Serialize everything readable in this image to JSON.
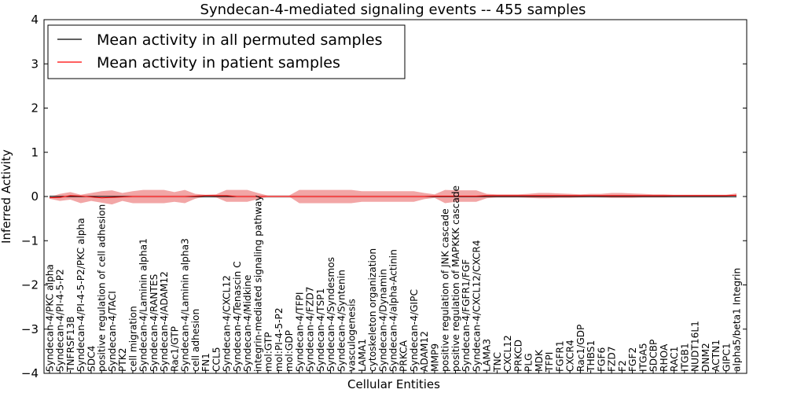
{
  "chart_data": {
    "type": "line",
    "title": "Syndecan-4-mediated signaling events -- 455 samples",
    "xlabel": "Cellular Entities",
    "ylabel": "Inferred Activity",
    "ylim": [
      -4,
      4
    ],
    "yticks": [
      "−4",
      "−3",
      "−2",
      "−1",
      "0",
      "1",
      "2",
      "3",
      "4"
    ],
    "yticks_values": [
      -4,
      -3,
      -2,
      -1,
      0,
      1,
      2,
      3,
      4
    ],
    "legend": {
      "position": "top-left",
      "entries": [
        {
          "label": "Mean activity in all permuted samples",
          "color": "#000000"
        },
        {
          "label": "Mean activity in patient samples",
          "color": "#ff0000"
        }
      ]
    },
    "colors": {
      "permuted": "#000000",
      "patient": "#ff0000",
      "patient_band": "#ee8888",
      "permuted_band": "#bbbbbb"
    },
    "categories": [
      "Syndecan-4/PKC alpha",
      "Syndecan-4/PI-4-5-P2",
      "TNFRSF13B",
      "Syndecan-4/PI-4-5-P2/PKC alpha",
      "SDC4",
      "positive regulation of cell adhesion",
      "Syndecan-4/TACI",
      "PTK2",
      "cell migration",
      "Syndecan-4/Laminin alpha1",
      "Syndecan-4/RANTES",
      "Syndecan-4/ADAM12",
      "Rac1/GTP",
      "Syndecan-4/Laminin alpha3",
      "cell adhesion",
      "FN1",
      "CCL5",
      "Syndecan-4/CXCL12",
      "Syndecan-4/Tenascin C",
      "Syndecan-4/Midkine",
      "integrin-mediated signaling pathway",
      "mol:GTP",
      "mol:PI-4-5-P2",
      "mol:GDP",
      "Syndecan-4/TFPI",
      "Syndecan-4/FZD7",
      "Syndecan-4/TSP1",
      "Syndecan-4/Syndesmos",
      "Syndecan-4/Syntenin",
      "vasculogenesis",
      "LAMA1",
      "cytoskeleton organization",
      "Syndecan-4/Dynamin",
      "Syndecan-4/alpha-Actinin",
      "PRKCA",
      "Syndecan-4/GIPC",
      "ADAM12",
      "MMP9",
      "positive regulation of JNK cascade",
      "positive regulation of MAPKKK cascade",
      "Syndecan-4/FGFR1/FGF",
      "Syndecan-4/CXCL12/CXCR4",
      "LAMA3",
      "TNC",
      "CXCL12",
      "PRKCD",
      "PLG",
      "MDK",
      "TFPI",
      "FGFR1",
      "CXCR4",
      "Rac1/GDP",
      "THBS1",
      "FGF6",
      "FZD7",
      "F2",
      "FGF2",
      "ITGA5",
      "SDCBP",
      "RHOA",
      "RAC1",
      "ITGB1",
      "NUDT16L1",
      "DNM2",
      "ACTN1",
      "GIPC1",
      "alpha5/beta1 Integrin"
    ],
    "series": [
      {
        "name": "Mean activity in patient samples",
        "values": [
          -0.03,
          -0.02,
          0.02,
          0.01,
          -0.01,
          -0.03,
          -0.02,
          -0.01,
          0,
          0,
          0,
          0,
          0,
          0,
          0.01,
          0.02,
          0.02,
          0.02,
          0,
          0,
          0,
          0,
          0,
          0,
          0,
          0,
          0,
          0,
          0,
          0,
          0,
          0,
          0,
          0,
          0,
          0,
          0,
          0.01,
          0.01,
          0.01,
          0.01,
          0.01,
          0.02,
          0.02,
          0.02,
          0.02,
          0.02,
          0.02,
          0.02,
          0.02,
          0.02,
          0.02,
          0.02,
          0.02,
          0.02,
          0.02,
          0.02,
          0.02,
          0.02,
          0.02,
          0.02,
          0.02,
          0.02,
          0.02,
          0.02,
          0.02,
          0.03
        ],
        "lower": [
          -0.05,
          -0.1,
          -0.07,
          -0.15,
          -0.1,
          -0.14,
          -0.18,
          -0.1,
          -0.15,
          -0.15,
          -0.15,
          -0.15,
          -0.12,
          -0.15,
          -0.05,
          0,
          -0.02,
          -0.12,
          -0.12,
          -0.12,
          -0.06,
          0,
          0,
          0,
          -0.15,
          -0.15,
          -0.15,
          -0.15,
          -0.15,
          -0.15,
          -0.12,
          -0.12,
          -0.12,
          -0.12,
          -0.12,
          -0.12,
          -0.06,
          -0.03,
          -0.15,
          -0.12,
          -0.12,
          -0.12,
          -0.04,
          -0.02,
          -0.02,
          -0.02,
          -0.03,
          -0.04,
          -0.04,
          -0.03,
          -0.03,
          -0.02,
          -0.01,
          -0.02,
          -0.03,
          -0.03,
          -0.03,
          -0.02,
          -0.02,
          -0.02,
          -0.01,
          -0.01,
          -0.01,
          -0.01,
          -0.01,
          -0.01,
          0
        ],
        "upper": [
          -0.01,
          0.06,
          0.1,
          0.04,
          0.08,
          0.12,
          0.14,
          0.08,
          0.12,
          0.15,
          0.15,
          0.15,
          0.1,
          0.15,
          0.06,
          0.04,
          0.05,
          0.15,
          0.15,
          0.15,
          0.08,
          0.02,
          0.02,
          0.02,
          0.15,
          0.15,
          0.15,
          0.15,
          0.15,
          0.15,
          0.12,
          0.12,
          0.12,
          0.12,
          0.12,
          0.12,
          0.08,
          0.05,
          0.15,
          0.14,
          0.14,
          0.14,
          0.06,
          0.05,
          0.05,
          0.05,
          0.06,
          0.08,
          0.08,
          0.07,
          0.06,
          0.05,
          0.06,
          0.06,
          0.08,
          0.08,
          0.07,
          0.06,
          0.05,
          0.05,
          0.04,
          0.04,
          0.04,
          0.04,
          0.04,
          0.04,
          0.07
        ]
      },
      {
        "name": "Mean activity in all permuted samples",
        "values": [
          0,
          0,
          0,
          0,
          0,
          0,
          0,
          0,
          0,
          0,
          0,
          0,
          0,
          0,
          0,
          0,
          0,
          0,
          0,
          0,
          0,
          0,
          0,
          0,
          0,
          0,
          0,
          0,
          0,
          0,
          0,
          0,
          0,
          0,
          0,
          0,
          0,
          0,
          0,
          0,
          0,
          0,
          0,
          0,
          0,
          0,
          0,
          0,
          0,
          0,
          0,
          0,
          0,
          0,
          0,
          0,
          0,
          0,
          0,
          0,
          0,
          0,
          0,
          0,
          0,
          0,
          0
        ],
        "lower": [
          -0.03,
          -0.03,
          -0.03,
          -0.03,
          -0.03,
          -0.03,
          -0.03,
          -0.03,
          -0.03,
          -0.03,
          -0.03,
          -0.03,
          -0.03,
          -0.03,
          -0.03,
          -0.03,
          -0.03,
          -0.03,
          -0.03,
          -0.03,
          -0.03,
          -0.03,
          -0.03,
          -0.03,
          -0.03,
          -0.03,
          -0.03,
          -0.03,
          -0.03,
          -0.03,
          -0.03,
          -0.03,
          -0.03,
          -0.03,
          -0.03,
          -0.03,
          -0.03,
          -0.03,
          -0.03,
          -0.03,
          -0.03,
          -0.03,
          -0.03,
          -0.03,
          -0.03,
          -0.03,
          -0.03,
          -0.03,
          -0.03,
          -0.03,
          -0.03,
          -0.03,
          -0.03,
          -0.03,
          -0.03,
          -0.03,
          -0.03,
          -0.03,
          -0.03,
          -0.03,
          -0.03,
          -0.03,
          -0.03,
          -0.03,
          -0.03,
          -0.03,
          -0.03
        ],
        "upper": [
          0.03,
          0.03,
          0.03,
          0.03,
          0.03,
          0.03,
          0.03,
          0.03,
          0.03,
          0.03,
          0.03,
          0.03,
          0.03,
          0.03,
          0.03,
          0.03,
          0.03,
          0.03,
          0.03,
          0.03,
          0.03,
          0.03,
          0.03,
          0.03,
          0.03,
          0.03,
          0.03,
          0.03,
          0.03,
          0.03,
          0.03,
          0.03,
          0.03,
          0.03,
          0.03,
          0.03,
          0.03,
          0.03,
          0.03,
          0.03,
          0.03,
          0.03,
          0.03,
          0.03,
          0.03,
          0.03,
          0.03,
          0.03,
          0.03,
          0.03,
          0.03,
          0.03,
          0.03,
          0.03,
          0.03,
          0.03,
          0.03,
          0.03,
          0.03,
          0.03,
          0.03,
          0.03,
          0.03,
          0.03,
          0.03,
          0.03,
          0.03
        ]
      }
    ]
  }
}
